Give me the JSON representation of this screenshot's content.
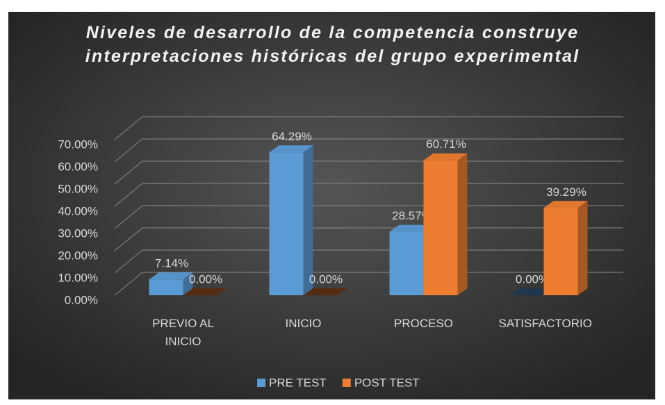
{
  "chart_data": {
    "type": "bar3d",
    "title": "Niveles de desarrollo de la competencia construye interpretaciones históricas del grupo experimental",
    "categories": [
      "PREVIO AL INICIO",
      "INICIO",
      "PROCESO",
      "SATISFACTORIO"
    ],
    "series": [
      {
        "name": "PRE TEST",
        "color": "#5b9bd5",
        "values": [
          7.14,
          64.29,
          28.57,
          0
        ],
        "value_labels": [
          "7.14%",
          "64.29%",
          "28.57%",
          "0.00%"
        ]
      },
      {
        "name": "POST TEST",
        "color": "#ed7d31",
        "values": [
          0,
          0,
          60.71,
          39.29
        ],
        "value_labels": [
          "0.00%",
          "0.00%",
          "60.71%",
          "39.29%"
        ]
      }
    ],
    "ylim": [
      0,
      70
    ],
    "yticks": [
      {
        "value": 0,
        "label": "0.00%"
      },
      {
        "value": 10,
        "label": "10.00%"
      },
      {
        "value": 20,
        "label": "20.00%"
      },
      {
        "value": 30,
        "label": "30.00%"
      },
      {
        "value": 40,
        "label": "40.00%"
      },
      {
        "value": 50,
        "label": "50.00%"
      },
      {
        "value": 60,
        "label": "60.00%"
      },
      {
        "value": 70,
        "label": "70.00%"
      }
    ],
    "grid": true,
    "legend": "bottom"
  }
}
